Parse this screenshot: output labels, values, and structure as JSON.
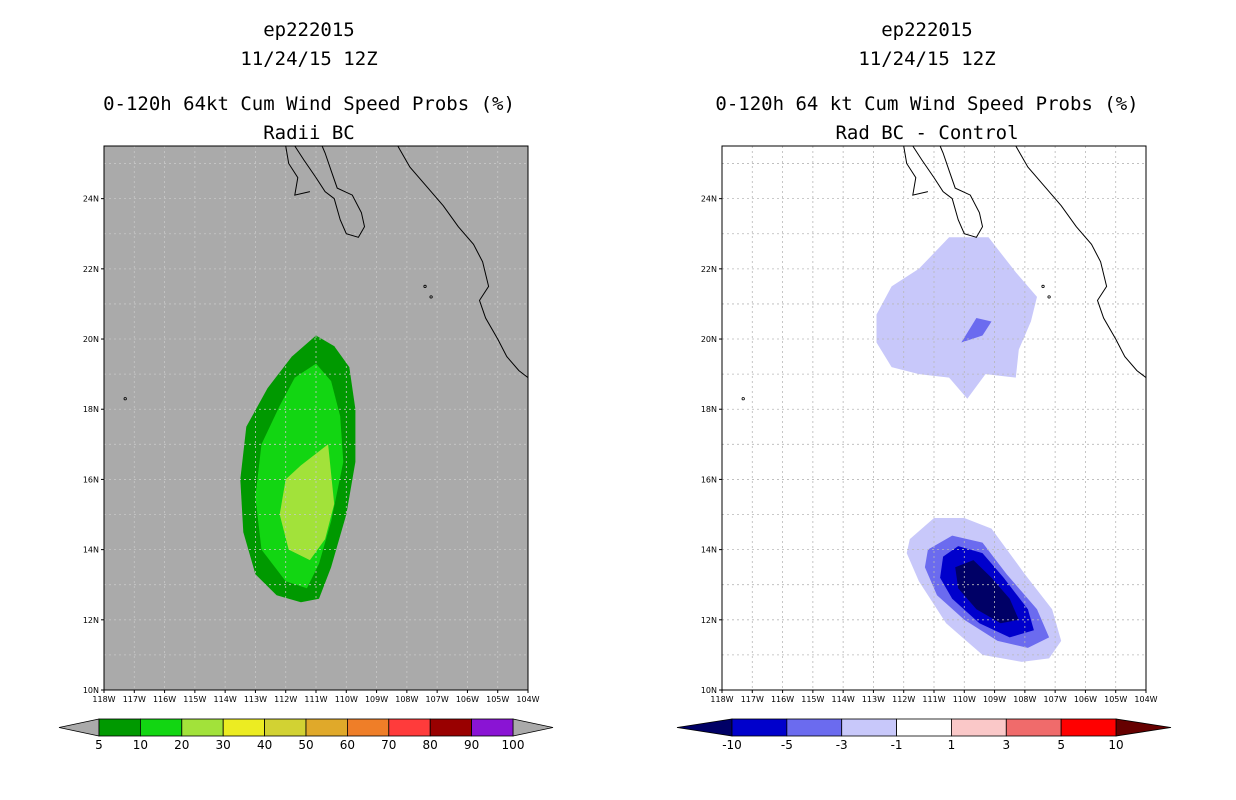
{
  "chart_data": [
    {
      "type": "filled-contour map",
      "storm_id": "ep222015",
      "datetime": "11/24/15 12Z",
      "title": "0-120h 64kt Cum Wind Speed Probs (%)",
      "subtitle": "Radii BC",
      "lon_range": [
        118,
        104
      ],
      "lat_range": [
        10,
        25.5
      ],
      "x_tick_labels": [
        "118W",
        "117W",
        "116W",
        "115W",
        "114W",
        "113W",
        "112W",
        "111W",
        "110W",
        "109W",
        "108W",
        "107W",
        "106W",
        "105W",
        "104W"
      ],
      "y_tick_labels": [
        "10N",
        "12N",
        "14N",
        "16N",
        "18N",
        "20N",
        "22N",
        "24N"
      ],
      "background_color": "#aaaaaa",
      "grid": true,
      "colorbar": {
        "levels": [
          "5",
          "10",
          "20",
          "30",
          "40",
          "50",
          "60",
          "70",
          "80",
          "90",
          "100"
        ],
        "colors": [
          "#009900",
          "#12d612",
          "#a2e23a",
          "#ecec22",
          "#d2d233",
          "#e0a92a",
          "#ef7e28",
          "#ff3b3b",
          "#990000",
          "#8a14d4"
        ],
        "low_color": "#aaaaaa",
        "high_color": "#aaaaaa"
      },
      "contours": [
        {
          "level": "5-10",
          "color": "#009900",
          "points": [
            [
              111.0,
              20.1
            ],
            [
              110.4,
              19.8
            ],
            [
              109.9,
              19.2
            ],
            [
              109.7,
              18.0
            ],
            [
              109.7,
              16.5
            ],
            [
              110.0,
              15.0
            ],
            [
              110.5,
              13.5
            ],
            [
              110.9,
              12.6
            ],
            [
              111.5,
              12.5
            ],
            [
              112.3,
              12.7
            ],
            [
              113.0,
              13.3
            ],
            [
              113.4,
              14.5
            ],
            [
              113.5,
              16.0
            ],
            [
              113.3,
              17.5
            ],
            [
              112.6,
              18.6
            ],
            [
              111.8,
              19.5
            ]
          ]
        },
        {
          "level": "10-20",
          "color": "#12d612",
          "points": [
            [
              111.0,
              19.3
            ],
            [
              110.5,
              18.8
            ],
            [
              110.2,
              17.8
            ],
            [
              110.1,
              16.5
            ],
            [
              110.5,
              14.8
            ],
            [
              110.9,
              13.6
            ],
            [
              111.3,
              12.9
            ],
            [
              112.0,
              13.1
            ],
            [
              112.8,
              14.0
            ],
            [
              113.0,
              15.5
            ],
            [
              112.8,
              17.0
            ],
            [
              112.2,
              18.1
            ],
            [
              111.7,
              18.9
            ]
          ]
        },
        {
          "level": "20-30",
          "color": "#a2e23a",
          "points": [
            [
              110.6,
              17.0
            ],
            [
              110.4,
              15.3
            ],
            [
              110.7,
              14.3
            ],
            [
              111.2,
              13.7
            ],
            [
              111.9,
              14.0
            ],
            [
              112.2,
              15.0
            ],
            [
              112.0,
              16.0
            ],
            [
              111.5,
              16.4
            ]
          ]
        }
      ]
    },
    {
      "type": "filled-contour map",
      "storm_id": "ep222015",
      "datetime": "11/24/15 12Z",
      "title": "0-120h 64 kt Cum Wind Speed Probs (%)",
      "subtitle": "Rad BC - Control",
      "lon_range": [
        118,
        104
      ],
      "lat_range": [
        10,
        25.5
      ],
      "x_tick_labels": [
        "118W",
        "117W",
        "116W",
        "115W",
        "114W",
        "113W",
        "112W",
        "111W",
        "110W",
        "109W",
        "108W",
        "107W",
        "106W",
        "105W",
        "104W"
      ],
      "y_tick_labels": [
        "10N",
        "12N",
        "14N",
        "16N",
        "18N",
        "20N",
        "22N",
        "24N"
      ],
      "background_color": "#ffffff",
      "grid": true,
      "colorbar": {
        "levels": [
          "-10",
          "-5",
          "-3",
          "-1",
          "1",
          "3",
          "5",
          "10"
        ],
        "colors": [
          "#0000cc",
          "#6b6bef",
          "#c8c8fa",
          "#ffffff",
          "#fac8c8",
          "#f06b6b",
          "#ff0000"
        ],
        "low_color": "#000066",
        "high_color": "#660000"
      },
      "contours": [
        {
          "level": "-3 to -1 (north)",
          "color": "#c8c8fa",
          "points": [
            [
              112.9,
              20.7
            ],
            [
              112.4,
              21.5
            ],
            [
              111.5,
              22.0
            ],
            [
              110.5,
              22.9
            ],
            [
              109.2,
              22.9
            ],
            [
              108.3,
              21.9
            ],
            [
              107.6,
              21.2
            ],
            [
              107.8,
              20.5
            ],
            [
              108.2,
              19.7
            ],
            [
              108.3,
              18.9
            ],
            [
              109.3,
              19.0
            ],
            [
              109.9,
              18.3
            ],
            [
              110.5,
              18.9
            ],
            [
              111.5,
              19.0
            ],
            [
              112.4,
              19.2
            ],
            [
              112.9,
              19.9
            ]
          ]
        },
        {
          "level": "-5 to -3 (north)",
          "color": "#6b6bef",
          "points": [
            [
              110.1,
              19.9
            ],
            [
              109.6,
              20.6
            ],
            [
              109.1,
              20.5
            ],
            [
              109.4,
              20.1
            ]
          ]
        },
        {
          "level": "-3 to -1 (south)",
          "color": "#c8c8fa",
          "points": [
            [
              111.8,
              14.3
            ],
            [
              111.0,
              14.9
            ],
            [
              110.0,
              14.9
            ],
            [
              109.1,
              14.6
            ],
            [
              108.0,
              13.3
            ],
            [
              107.1,
              12.3
            ],
            [
              106.8,
              11.4
            ],
            [
              107.2,
              10.9
            ],
            [
              108.1,
              10.8
            ],
            [
              109.4,
              11.0
            ],
            [
              110.6,
              11.9
            ],
            [
              111.5,
              13.1
            ],
            [
              111.9,
              13.9
            ]
          ]
        },
        {
          "level": "-5 to -3 (south)",
          "color": "#6b6bef",
          "points": [
            [
              111.2,
              14.0
            ],
            [
              110.4,
              14.4
            ],
            [
              109.4,
              14.2
            ],
            [
              108.6,
              13.3
            ],
            [
              107.6,
              12.3
            ],
            [
              107.2,
              11.5
            ],
            [
              107.9,
              11.2
            ],
            [
              108.9,
              11.4
            ],
            [
              110.0,
              12.0
            ],
            [
              110.9,
              12.7
            ],
            [
              111.3,
              13.5
            ]
          ]
        },
        {
          "level": "-10 to -5",
          "color": "#0000cc",
          "points": [
            [
              110.7,
              13.8
            ],
            [
              110.2,
              14.1
            ],
            [
              109.4,
              13.9
            ],
            [
              108.7,
              13.2
            ],
            [
              107.9,
              12.3
            ],
            [
              107.7,
              11.7
            ],
            [
              108.5,
              11.5
            ],
            [
              109.5,
              11.9
            ],
            [
              110.4,
              12.6
            ],
            [
              110.8,
              13.2
            ]
          ]
        },
        {
          "level": "< -10",
          "color": "#000066",
          "points": [
            [
              110.3,
              13.5
            ],
            [
              109.7,
              13.7
            ],
            [
              109.1,
              13.2
            ],
            [
              108.5,
              12.6
            ],
            [
              108.2,
              12.0
            ],
            [
              108.8,
              11.9
            ],
            [
              109.6,
              12.3
            ],
            [
              110.2,
              12.9
            ]
          ]
        }
      ]
    }
  ]
}
